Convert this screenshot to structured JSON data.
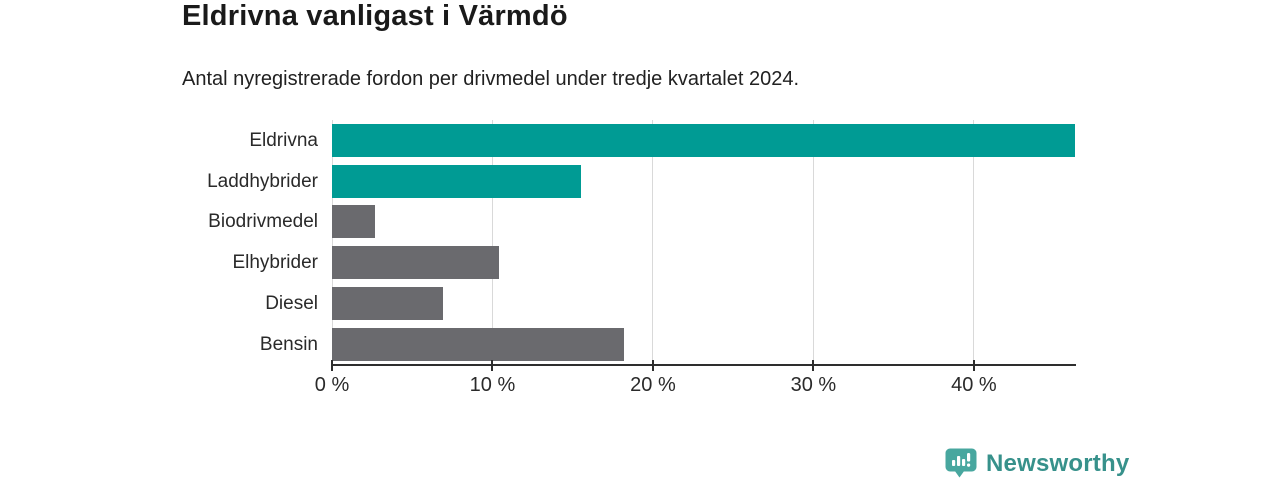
{
  "header": {
    "title": "Eldrivna vanligast i Värmdö",
    "subtitle": "Antal nyregistrerade fordon per drivmedel under tredje kvartalet 2024."
  },
  "chart_data": {
    "type": "bar",
    "orientation": "horizontal",
    "title": "Eldrivna vanligast i Värmdö",
    "subtitle": "Antal nyregistrerade fordon per drivmedel under tredje kvartalet 2024.",
    "categories": [
      "Eldrivna",
      "Laddhybrider",
      "Biodrivmedel",
      "Elhybrider",
      "Diesel",
      "Bensin"
    ],
    "values": [
      46.3,
      15.5,
      2.7,
      10.4,
      6.9,
      18.2
    ],
    "unit": "%",
    "bar_colors": [
      "#009b94",
      "#009b94",
      "#6a6a6e",
      "#6a6a6e",
      "#6a6a6e",
      "#6a6a6e"
    ],
    "highlight_color": "#009b94",
    "default_color": "#6a6a6e",
    "xlabel": "",
    "ylabel": "",
    "xlim": [
      0,
      46.3
    ],
    "x_ticks": [
      {
        "value": 0,
        "label": "0 %"
      },
      {
        "value": 10,
        "label": "10 %"
      },
      {
        "value": 20,
        "label": "20 %"
      },
      {
        "value": 30,
        "label": "30 %"
      },
      {
        "value": 40,
        "label": "40 %"
      }
    ],
    "grid": "vertical",
    "gridline_color": "#d9d9d9",
    "axis_color": "#2e2e2e",
    "legend": "none"
  },
  "footer": {
    "logo_text": "Newsworthy",
    "logo_color": "#37918b",
    "logo_icon": "bar-chart-speech-bubble-icon",
    "logo_icon_color": "#48a79f"
  }
}
